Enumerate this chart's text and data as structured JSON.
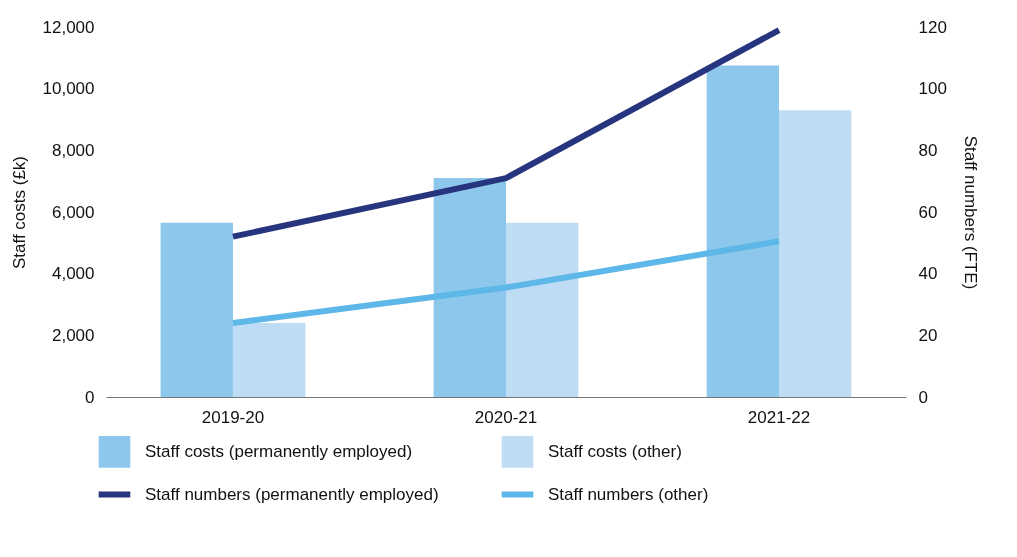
{
  "chart_data": {
    "type": "bar",
    "categories": [
      "2019-20",
      "2020-21",
      "2021-22"
    ],
    "series": [
      {
        "name": "Staff costs (permanently employed)",
        "color": "#8dc8ec",
        "values": [
          5650,
          7100,
          10750
        ]
      },
      {
        "name": "Staff costs (other)",
        "color": "#bedcf4",
        "values": [
          2400,
          5650,
          9300
        ]
      },
      {
        "name": "Staff numbers (permanently employed)",
        "color": "#27357e",
        "type": "line",
        "axis": "y2",
        "values": [
          52,
          71,
          119
        ]
      },
      {
        "name": "Staff numbers (other)",
        "color": "#5db7e8",
        "type": "line",
        "axis": "y2",
        "values": [
          24,
          35.5,
          50.5
        ]
      }
    ],
    "ylabel": "Staff costs (£k)",
    "y2label": "Staff numbers (FTE)",
    "ylim": [
      0,
      12000
    ],
    "yticks": [
      0,
      {
        "value": 2000,
        "label": "2,000"
      },
      {
        "value": 4000,
        "label": "4,000"
      },
      {
        "value": 6000,
        "label": "6,000"
      },
      {
        "value": 8000,
        "label": "8,000"
      },
      {
        "value": 10000,
        "label": "10,000"
      },
      {
        "value": 12000,
        "label": "12,000"
      }
    ],
    "y2lim": [
      0,
      120
    ],
    "y2ticks": [
      0,
      20,
      40,
      60,
      80,
      100,
      120
    ],
    "legend": "bottom",
    "line_style": "solid",
    "marker": "none"
  }
}
